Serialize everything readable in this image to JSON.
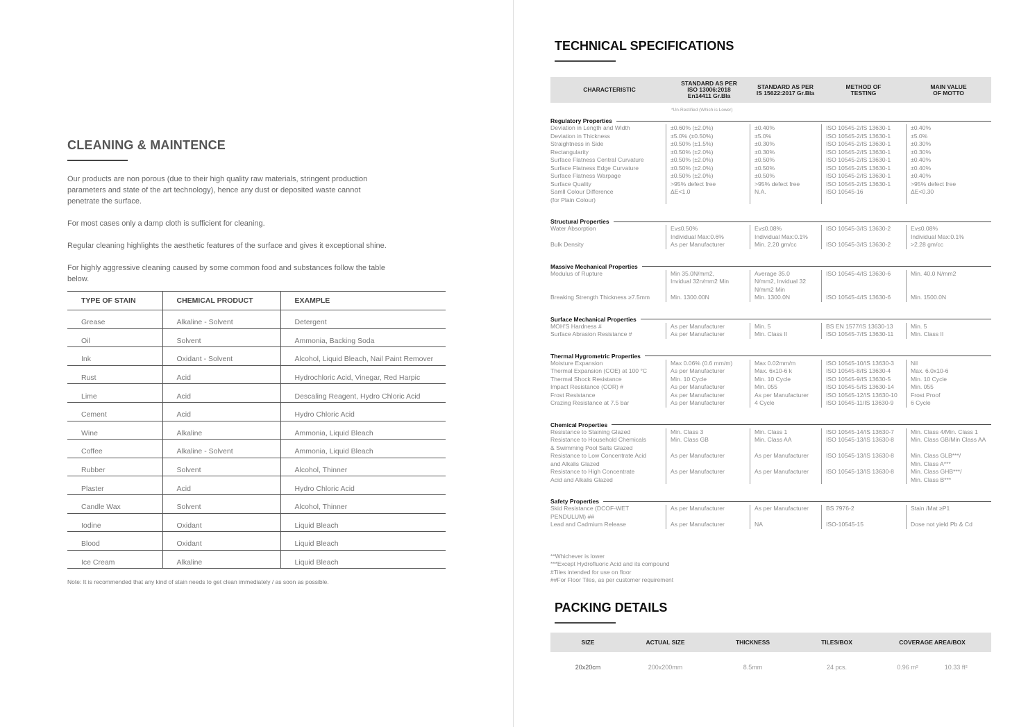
{
  "cleaning": {
    "title": "CLEANING & MAINTENCE",
    "paragraphs": [
      "Our products are non porous (due to their high quality raw materials, stringent production parameters and state of the art technology), hence any dust or deposited waste cannot penetrate the surface.",
      "For most cases only a damp cloth is sufficient for cleaning.",
      "Regular cleaning highlights the aesthetic features of the surface and gives it exceptional shine.",
      "For highly aggressive cleaning caused by some common food and substances follow the table below."
    ],
    "headers": [
      "TYPE OF STAIN",
      "CHEMICAL PRODUCT",
      "EXAMPLE"
    ],
    "rows": [
      [
        "Grease",
        "Alkaline - Solvent",
        "Detergent"
      ],
      [
        "Oil",
        "Solvent",
        "Ammonia, Backing Soda"
      ],
      [
        "Ink",
        "Oxidant - Solvent",
        "Alcohol, Liquid Bleach, Nail Paint Remover"
      ],
      [
        "Rust",
        "Acid",
        "Hydrochloric Acid, Vinegar, Red Harpic"
      ],
      [
        "Lime",
        "Acid",
        "Descaling Reagent, Hydro Chloric Acid"
      ],
      [
        "Cement",
        "Acid",
        "Hydro Chloric Acid"
      ],
      [
        "Wine",
        "Alkaline",
        "Ammonia, Liquid Bleach"
      ],
      [
        "Coffee",
        "Alkaline - Solvent",
        "Ammonia, Liquid Bleach"
      ],
      [
        "Rubber",
        "Solvent",
        "Alcohol, Thinner"
      ],
      [
        "Plaster",
        "Acid",
        "Hydro Chloric Acid"
      ],
      [
        "Candle Wax",
        "Solvent",
        "Alcohol, Thinner"
      ],
      [
        "Iodine",
        "Oxidant",
        "Liquid Bleach"
      ],
      [
        "Blood",
        "Oxidant",
        "Liquid Bleach"
      ],
      [
        "Ice Cream",
        "Alkaline",
        "Liquid Bleach"
      ]
    ],
    "note": "Note: It is recommended that any kind of stain needs to get clean immediately / as soon as possible."
  },
  "specs": {
    "title": "TECHNICAL SPECIFICATIONS",
    "headers": [
      "CHARACTERISTIC",
      "STANDARD AS PER\nISO 13006:2018\nEn14411 Gr.Bla",
      "STANDARD AS PER\nIS 15622:2017 Gr.Bla",
      "METHOD OF\nTESTING",
      "MAIN VALUE\nOF MOTTO"
    ],
    "unrectified": "*Un-Rectified (Which is Lower)",
    "sections": [
      {
        "name": "Regulatory Properties",
        "rows": [
          [
            "Deviation in Length and Width",
            "±0.60% (±2.0%)",
            "±0.40%",
            "ISO 10545-2/IS 13630-1",
            "±0.40%"
          ],
          [
            "Deviation in Thickness",
            "±5.0% (±0.50%)",
            "±5.0%",
            "ISO 10545-2/IS 13630-1",
            "±5.0%"
          ],
          [
            "Straightness in Side",
            "±0.50% (±1.5%)",
            "±0.30%",
            "ISO 10545-2/IS 13630-1",
            "±0.30%"
          ],
          [
            "Rectangularity",
            "±0.50% (±2.0%)",
            "±0.30%",
            "ISO 10545-2/IS 13630-1",
            "±0.30%"
          ],
          [
            "Surface Flatness Central Curvature",
            "±0.50% (±2.0%)",
            "±0.50%",
            "ISO 10545-2/IS 13630-1",
            "±0.40%"
          ],
          [
            "Surface Flatness Edge Curvature",
            "±0.50% (±2.0%)",
            "±0.50%",
            "ISO 10545-2/IS 13630-1",
            "±0.40%"
          ],
          [
            "Surface Flatness Warpage",
            "±0.50% (±2.0%)",
            "±0.50%",
            "ISO 10545-2/IS 13630-1",
            "±0.40%"
          ],
          [
            "Surface Quality",
            ">95% defect free",
            ">95% defect free",
            "ISO 10545-2/IS 13630-1",
            ">95% defect free"
          ],
          [
            "Samll Colour Difference\n(for Plain Colour)",
            "ΔE<1.0",
            "N.A.",
            "ISO 10545-16",
            "ΔE<0.30"
          ]
        ]
      },
      {
        "name": "Structural Properties",
        "rows": [
          [
            "Water Absorption",
            "Ev≤0.50%\nIndividual Max:0.6%",
            "Ev≤0.08%\nIndividual Max:0.1%",
            "ISO 10545-3/IS 13630-2",
            "Ev≤0.08%\nIndividual Max:0.1%"
          ],
          [
            "Bulk Density",
            "As per Manufacturer",
            "Min. 2.20 gm/cc",
            "ISO 10545-3/IS 13630-2",
            ">2.28 gm/cc"
          ]
        ]
      },
      {
        "name": "Massive Mechanical Properties",
        "rows": [
          [
            "Modulus of Rupture",
            "Min 35.0N/mm2,\nInvidual 32n/mm2 Min",
            "Average 35.0\nN/mm2, Invidual 32\nN/mm2 Min",
            "ISO 10545-4/IS 13630-6",
            "Min. 40.0 N/mm2"
          ],
          [
            "Breaking Strength Thickness ≥7.5mm",
            "Min. 1300.00N",
            "Min. 1300.0N",
            "ISO 10545-4/IS 13630-6",
            "Min. 1500.0N"
          ]
        ]
      },
      {
        "name": "Surface Mechanical Properties",
        "rows": [
          [
            "MOH'S Hardness #",
            "As per Manufacturer",
            "Min. 5",
            "BS EN 1577/IS 13630-13",
            "Min. 5"
          ],
          [
            "Surface Abrasion Resistance #",
            "As per Manufacturer",
            "Min. Class II",
            "ISO 10545-7/IS 13630-11",
            "Min. Class II"
          ]
        ]
      },
      {
        "name": "Thermal Hygrometric Properties",
        "rows": [
          [
            "Moisture Expansion",
            "Max 0.06% (0.6 mm/m)",
            "Max 0.02mm/m",
            "ISO 10545-10/IS 13630-3",
            "Nil"
          ],
          [
            "Thermal Expansion (COE) at 100 °C",
            "As per Manufacturer",
            "Max. 6x10-6 k",
            "ISO 10545-8/IS 13630-4",
            "Max. 6.0x10-6"
          ],
          [
            "Thermal Shock Resistance",
            "Min. 10 Cycle",
            "Min. 10 Cycle",
            "ISO 10545-9/IS 13630-5",
            "Min. 10 Cycle"
          ],
          [
            "Impact Resistance (COR) #",
            "As per Manufacturer",
            "Min. 055",
            "ISO 10545-5/IS 13630-14",
            "Min. 055"
          ],
          [
            "Frost Resistance",
            "As per Manufacturer",
            "As per Manufacturer",
            "ISO 10545-12/IS 13630-10",
            "Frost Proof"
          ],
          [
            "Crazing Resistance at 7.5 bar",
            "As per Manufacturer",
            "4 Cycle",
            "ISO 10545-11/IS 13630-9",
            "6 Cycle"
          ]
        ]
      },
      {
        "name": "Chemical Properties",
        "rows": [
          [
            "Resistance to Staining Glazed",
            "Min. Class 3",
            "Min. Class 1",
            "ISO 10545-14/IS 13630-7",
            "Min. Class 4/Min. Class 1"
          ],
          [
            "Resistance to Household Chemicals\n& Swimming Pool Salts Glazed",
            "Min. Class GB",
            "Min. Class AA",
            "ISO 10545-13/IS 13630-8",
            "Min. Class GB/Min Class AA"
          ],
          [
            "Resistance to Low Concentrate Acid\nand Alkalis Glazed",
            "As per Manufacturer",
            "As per Manufacturer",
            "ISO 10545-13/IS 13630-8",
            "Min. Class GLB***/\nMin. Class A***"
          ],
          [
            "Resistance to High Concentrate\nAcid and Alkalis Glazed",
            "As per Manufacturer",
            "As per Manufacturer",
            "ISO 10545-13/IS 13630-8",
            "Min. Class GHB***/\nMin. Class B***"
          ]
        ]
      },
      {
        "name": "Safety Properties",
        "rows": [
          [
            "Skid Resistance (DCOF-WET\nPENDULUM) ##",
            "As per Manufacturer",
            "As per Manufacturer",
            "BS 7976-2",
            "Stain /Mat ≥P1"
          ],
          [
            "Lead and Cadmium Release",
            "As per Manufacturer",
            "NA",
            "ISO-10545-15",
            "Dose not yield Pb & Cd"
          ]
        ]
      }
    ],
    "footnotes": [
      "**Whichever is lower",
      "***Except Hydrofluoric Acid and its compound",
      "#Tiles intended for use on floor",
      "##For Floor Tiles, as per customer requirement"
    ]
  },
  "packing": {
    "title": "PACKING DETAILS",
    "headers": [
      "SIZE",
      "ACTUAL SIZE",
      "THICKNESS",
      "TILES/BOX",
      "COVERAGE AREA/BOX"
    ],
    "row": {
      "size": "20x20cm",
      "actual": "200x200mm",
      "thickness": "8.5mm",
      "tiles": "24 pcs.",
      "area_m": "0.96 m²",
      "area_ft": "10.33 ft²"
    }
  }
}
